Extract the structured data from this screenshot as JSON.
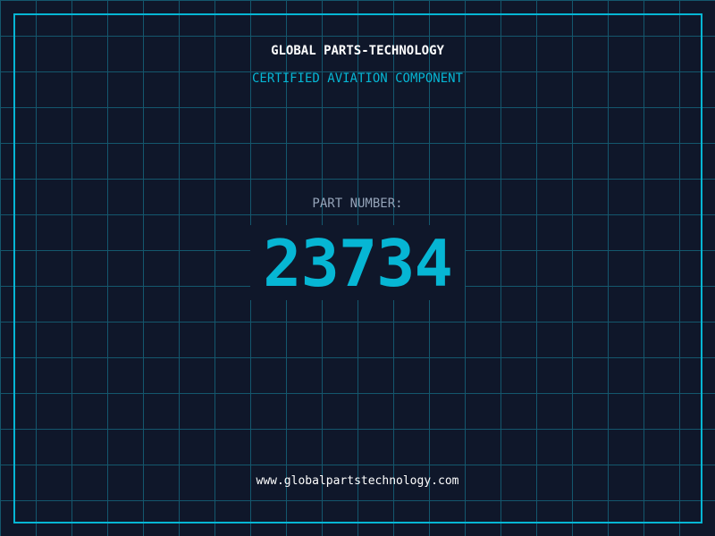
{
  "header": {
    "title": "GLOBAL PARTS-TECHNOLOGY",
    "subtitle": "CERTIFIED AVIATION COMPONENT"
  },
  "main": {
    "label": "PART NUMBER:",
    "part_number": "23734"
  },
  "footer": {
    "url": "www.globalpartstechnology.com"
  },
  "colors": {
    "background": "#0f172a",
    "accent": "#06b6d4",
    "grid": "#155e75",
    "label": "#94a3b8"
  }
}
